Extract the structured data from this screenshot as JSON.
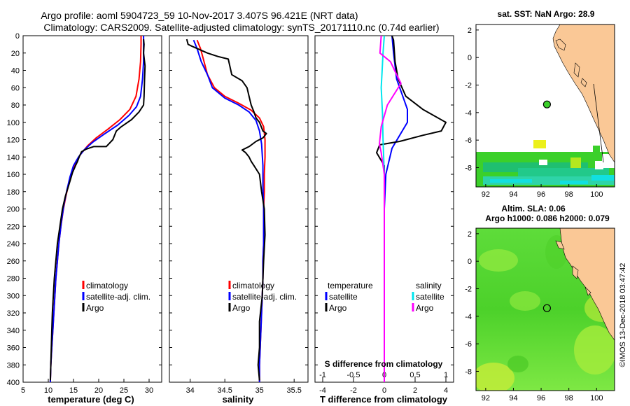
{
  "header": {
    "line1": "Argo profile: aoml 5904723_59 10-Nov-2017 3.407S 96.421E (NRT data)",
    "line2": "Climatology: CARS2009. Satellite-adjusted climatology: synTS_20171110.nc (0.74d earlier)"
  },
  "credit": "©IMOS 13-Dec-2018 03:47:42",
  "colors": {
    "climatology": "#ff0000",
    "satellite": "#0000ff",
    "argo": "#000000",
    "sal_sat": "#00e5ee",
    "sal_argo": "#ff00ff",
    "land": "#fac896",
    "ocean_top": "#ffffff"
  },
  "chart_data": [
    {
      "type": "line",
      "title": "",
      "xlabel": "temperature (deg C)",
      "ylabel": "",
      "xlim": [
        5,
        32.5
      ],
      "ylim": [
        400,
        0
      ],
      "xticks": [
        5,
        10,
        15,
        20,
        25,
        30
      ],
      "yticks": [
        0,
        20,
        40,
        60,
        80,
        100,
        120,
        140,
        160,
        180,
        200,
        220,
        240,
        260,
        280,
        300,
        320,
        340,
        360,
        380,
        400
      ],
      "legend": [
        "climatology",
        "satellite-adj. clim.",
        "Argo"
      ],
      "series": [
        {
          "name": "climatology",
          "color": "#ff0000",
          "points": [
            [
              28.4,
              0
            ],
            [
              28.4,
              10
            ],
            [
              28.3,
              30
            ],
            [
              28.0,
              50
            ],
            [
              27.4,
              70
            ],
            [
              26.2,
              85
            ],
            [
              24.2,
              97
            ],
            [
              21.8,
              108
            ],
            [
              19.5,
              118
            ],
            [
              17.8,
              127
            ],
            [
              16.4,
              137
            ],
            [
              15.5,
              145
            ],
            [
              14.8,
              155
            ],
            [
              14.1,
              170
            ],
            [
              13.5,
              185
            ],
            [
              13.0,
              200
            ],
            [
              12.5,
              220
            ],
            [
              12.1,
              240
            ],
            [
              11.8,
              260
            ],
            [
              11.5,
              280
            ],
            [
              11.3,
              300
            ],
            [
              11.1,
              320
            ],
            [
              10.9,
              340
            ],
            [
              10.7,
              360
            ],
            [
              10.5,
              380
            ],
            [
              10.4,
              400
            ]
          ]
        },
        {
          "name": "satellite-adj. clim.",
          "color": "#0000ff",
          "points": [
            [
              28.9,
              0
            ],
            [
              28.9,
              10
            ],
            [
              28.9,
              30
            ],
            [
              28.7,
              50
            ],
            [
              28.3,
              70
            ],
            [
              27.5,
              82
            ],
            [
              26.0,
              92
            ],
            [
              23.8,
              103
            ],
            [
              21.0,
              114
            ],
            [
              18.8,
              123
            ],
            [
              17.1,
              132
            ],
            [
              16.0,
              140
            ],
            [
              15.0,
              150
            ],
            [
              14.3,
              163
            ],
            [
              13.7,
              178
            ],
            [
              13.1,
              195
            ],
            [
              12.6,
              215
            ],
            [
              12.1,
              240
            ],
            [
              11.8,
              260
            ],
            [
              11.5,
              280
            ],
            [
              11.3,
              300
            ],
            [
              11.1,
              320
            ],
            [
              10.9,
              340
            ],
            [
              10.7,
              360
            ],
            [
              10.5,
              380
            ],
            [
              10.4,
              400
            ]
          ]
        },
        {
          "name": "Argo",
          "color": "#000000",
          "points": [
            [
              28.9,
              4
            ],
            [
              29.0,
              10
            ],
            [
              28.9,
              20
            ],
            [
              29.2,
              35
            ],
            [
              29.1,
              50
            ],
            [
              29.0,
              70
            ],
            [
              28.9,
              80
            ],
            [
              28.0,
              88
            ],
            [
              26.5,
              97
            ],
            [
              24.5,
              105
            ],
            [
              23.5,
              110
            ],
            [
              22.8,
              120
            ],
            [
              21.5,
              128
            ],
            [
              19.0,
              128
            ],
            [
              17.5,
              131
            ],
            [
              16.6,
              134
            ],
            [
              16.2,
              139
            ],
            [
              15.8,
              145
            ],
            [
              15.4,
              150
            ],
            [
              14.8,
              158
            ],
            [
              14.2,
              170
            ],
            [
              13.4,
              185
            ],
            [
              12.8,
              200
            ],
            [
              12.3,
              220
            ],
            [
              11.8,
              240
            ],
            [
              11.5,
              260
            ],
            [
              11.2,
              280
            ],
            [
              11.0,
              300
            ],
            [
              10.8,
              320
            ],
            [
              10.7,
              340
            ],
            [
              10.6,
              360
            ],
            [
              10.5,
              380
            ],
            [
              10.4,
              398
            ]
          ]
        }
      ]
    },
    {
      "type": "line",
      "title": "",
      "xlabel": "salinity",
      "ylabel": "",
      "xlim": [
        33.7,
        35.7
      ],
      "ylim": [
        400,
        0
      ],
      "xticks": [
        34,
        34.5,
        35,
        35.5
      ],
      "legend": [
        "climatology",
        "satellite-adj. clim.",
        "Argo"
      ],
      "series": [
        {
          "name": "climatology",
          "color": "#ff0000",
          "points": [
            [
              34.1,
              5
            ],
            [
              34.15,
              15
            ],
            [
              34.2,
              30
            ],
            [
              34.25,
              45
            ],
            [
              34.35,
              60
            ],
            [
              34.5,
              70
            ],
            [
              34.7,
              78
            ],
            [
              34.88,
              86
            ],
            [
              35.0,
              95
            ],
            [
              35.06,
              105
            ],
            [
              35.08,
              120
            ],
            [
              35.08,
              140
            ],
            [
              35.07,
              160
            ],
            [
              35.07,
              180
            ],
            [
              35.06,
              200
            ],
            [
              35.06,
              220
            ],
            [
              35.06,
              240
            ],
            [
              35.05,
              260
            ],
            [
              35.05,
              280
            ],
            [
              35.04,
              300
            ],
            [
              35.03,
              320
            ],
            [
              35.02,
              340
            ],
            [
              35.01,
              360
            ],
            [
              35.0,
              380
            ],
            [
              35.0,
              400
            ]
          ]
        },
        {
          "name": "satellite-adj. clim.",
          "color": "#0000ff",
          "points": [
            [
              34.05,
              5
            ],
            [
              34.1,
              15
            ],
            [
              34.16,
              30
            ],
            [
              34.25,
              45
            ],
            [
              34.32,
              60
            ],
            [
              34.5,
              72
            ],
            [
              34.7,
              80
            ],
            [
              34.85,
              88
            ],
            [
              34.95,
              98
            ],
            [
              35.0,
              110
            ],
            [
              35.03,
              125
            ],
            [
              35.05,
              150
            ],
            [
              35.05,
              160
            ],
            [
              35.05,
              175
            ],
            [
              35.06,
              200
            ],
            [
              35.06,
              220
            ],
            [
              35.06,
              240
            ],
            [
              35.05,
              260
            ],
            [
              35.05,
              280
            ],
            [
              35.04,
              300
            ],
            [
              35.03,
              320
            ],
            [
              35.02,
              340
            ],
            [
              35.01,
              360
            ],
            [
              35.0,
              380
            ],
            [
              35.0,
              400
            ]
          ]
        },
        {
          "name": "Argo",
          "color": "#000000",
          "points": [
            [
              33.95,
              4
            ],
            [
              33.97,
              10
            ],
            [
              34.02,
              12
            ],
            [
              34.25,
              20
            ],
            [
              34.4,
              24
            ],
            [
              34.55,
              27
            ],
            [
              34.6,
              45
            ],
            [
              34.75,
              52
            ],
            [
              34.82,
              60
            ],
            [
              34.85,
              70
            ],
            [
              34.88,
              80
            ],
            [
              34.92,
              88
            ],
            [
              34.95,
              95
            ],
            [
              35.0,
              100
            ],
            [
              35.05,
              110
            ],
            [
              35.1,
              113
            ],
            [
              35.05,
              118
            ],
            [
              34.95,
              122
            ],
            [
              34.85,
              128
            ],
            [
              34.75,
              132
            ],
            [
              34.8,
              135
            ],
            [
              34.85,
              140
            ],
            [
              34.88,
              145
            ],
            [
              34.92,
              150
            ],
            [
              35.0,
              160
            ],
            [
              35.03,
              180
            ],
            [
              35.07,
              200
            ],
            [
              35.08,
              230
            ],
            [
              35.06,
              260
            ],
            [
              35.05,
              280
            ],
            [
              35.04,
              300
            ],
            [
              35.0,
              330
            ],
            [
              35.0,
              360
            ],
            [
              34.98,
              380
            ],
            [
              35.0,
              398
            ]
          ]
        }
      ]
    },
    {
      "type": "line",
      "title": "",
      "xlabel": "T difference from climatology",
      "top_xlabel": "S difference from climatology",
      "ylabel": "",
      "xlim": [
        -4.5,
        4.5
      ],
      "ylim": [
        400,
        0
      ],
      "xticks": [
        -4,
        -2,
        0,
        2,
        4
      ],
      "top_xticks": [
        -1,
        -0.5,
        0,
        0.5,
        1
      ],
      "legend_temperature": {
        "header": "temperature",
        "items": [
          "satellite",
          "Argo"
        ]
      },
      "legend_salinity": {
        "header": "salinity",
        "items": [
          "satellite",
          "Argo"
        ]
      },
      "series": [
        {
          "name": "T satellite",
          "color": "#0000ff",
          "points": [
            [
              0.5,
              0
            ],
            [
              0.6,
              20
            ],
            [
              0.8,
              50
            ],
            [
              1.2,
              70
            ],
            [
              1.5,
              85
            ],
            [
              1.5,
              100
            ],
            [
              1.0,
              115
            ],
            [
              0.5,
              130
            ],
            [
              0.3,
              145
            ],
            [
              0.1,
              160
            ],
            [
              0.0,
              200
            ],
            [
              0.0,
              250
            ],
            [
              0.0,
              300
            ],
            [
              0.0,
              350
            ],
            [
              0.0,
              400
            ]
          ]
        },
        {
          "name": "T Argo",
          "color": "#000000",
          "points": [
            [
              0.5,
              0
            ],
            [
              0.6,
              5
            ],
            [
              0.7,
              30
            ],
            [
              0.9,
              50
            ],
            [
              1.4,
              70
            ],
            [
              2.5,
              85
            ],
            [
              4.0,
              100
            ],
            [
              3.7,
              110
            ],
            [
              2.5,
              115
            ],
            [
              1.0,
              122
            ],
            [
              -0.3,
              126
            ],
            [
              -0.5,
              135
            ],
            [
              0.0,
              150
            ],
            [
              0.0,
              200
            ],
            [
              0.0,
              250
            ],
            [
              0.0,
              300
            ],
            [
              0.0,
              350
            ],
            [
              0.0,
              400
            ]
          ]
        },
        {
          "name": "S satellite",
          "color": "#00e5ee",
          "points": [
            [
              0.0,
              0
            ],
            [
              -0.02,
              20
            ],
            [
              -0.05,
              60
            ],
            [
              -0.03,
              90
            ],
            [
              -0.02,
              120
            ],
            [
              0.0,
              160
            ],
            [
              0.0,
              200
            ],
            [
              0.0,
              300
            ],
            [
              0.0,
              400
            ]
          ]
        },
        {
          "name": "S Argo",
          "color": "#ff00ff",
          "points": [
            [
              -0.05,
              0
            ],
            [
              -0.07,
              20
            ],
            [
              0.1,
              30
            ],
            [
              0.2,
              45
            ],
            [
              0.27,
              55
            ],
            [
              0.05,
              80
            ],
            [
              -0.05,
              105
            ],
            [
              -0.08,
              125
            ],
            [
              -0.05,
              135
            ],
            [
              0.0,
              160
            ],
            [
              0.0,
              200
            ],
            [
              0.0,
              260
            ],
            [
              0.0,
              300
            ],
            [
              0.0,
              400
            ]
          ]
        }
      ]
    },
    {
      "type": "heatmap",
      "title": "sat. SST: NaN  Argo: 28.9",
      "xlabel": "",
      "ylabel": "",
      "xlim": [
        91.3,
        101.3
      ],
      "ylim": [
        -9.4,
        2.4
      ],
      "xticks": [
        92,
        94,
        96,
        98,
        100
      ],
      "yticks": [
        2,
        0,
        -2,
        -4,
        -6,
        -8
      ],
      "marker": [
        96.421,
        -3.407
      ]
    },
    {
      "type": "heatmap",
      "title": "Altim. SLA: 0.06",
      "subtitle": "Argo h1000: 0.086 h2000: 0.079",
      "xlabel": "",
      "ylabel": "",
      "xlim": [
        91.3,
        101.3
      ],
      "ylim": [
        -9.4,
        2.4
      ],
      "xticks": [
        92,
        94,
        96,
        98,
        100
      ],
      "yticks": [
        2,
        0,
        -2,
        -4,
        -6,
        -8
      ],
      "marker": [
        96.421,
        -3.407
      ]
    }
  ]
}
